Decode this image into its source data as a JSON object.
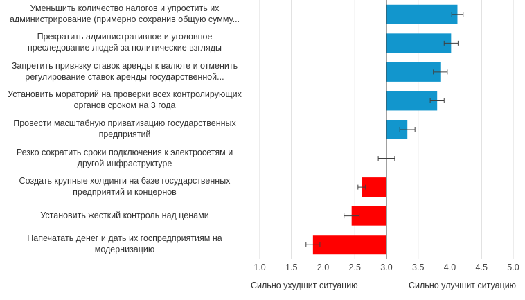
{
  "chart_data": {
    "type": "bar",
    "orientation": "horizontal",
    "categories": [
      [
        "Уменьшить количество налогов и упростить их",
        "администрирование (примерно сохранив общую сумму..."
      ],
      [
        "Прекратить административное и уголовное",
        "преследование людей за политические взгляды"
      ],
      [
        "Запретить привязку ставок аренды к валюте и отменить",
        "регулирование ставок аренды государственной..."
      ],
      [
        "Установить мораторий на проверки всех контролирующих",
        "органов сроком на 3 года"
      ],
      [
        "Провести масштабную приватизацию государственных",
        "предприятий"
      ],
      [
        "Резко сократить сроки подключения к электросетям и",
        "другой инфраструктуре"
      ],
      [
        "Создать крупные холдинги на базе государственных",
        "предприятий и концернов"
      ],
      [
        "Установить жесткий контроль над ценами"
      ],
      [
        "Напечатать денег и дать их госпредприятиям на",
        "модернизацию"
      ]
    ],
    "values": [
      4.12,
      4.02,
      3.85,
      3.8,
      3.33,
      3.0,
      2.61,
      2.45,
      1.84
    ],
    "error": [
      0.09,
      0.11,
      0.11,
      0.11,
      0.12,
      0.13,
      0.06,
      0.12,
      0.11
    ],
    "baseline": 3.0,
    "xlim": [
      1.0,
      5.0
    ],
    "x_ticks": [
      "1.0",
      "1.5",
      "2.0",
      "2.5",
      "3.0",
      "3.5",
      "4.0",
      "4.5",
      "5.0"
    ],
    "x_tick_values": [
      1.0,
      1.5,
      2.0,
      2.5,
      3.0,
      3.5,
      4.0,
      4.5,
      5.0
    ],
    "left_note": "Сильно ухудшит ситуацию",
    "right_note": "Сильно улучшит ситуацию",
    "grid": true,
    "colors": {
      "positive": "#1296CD",
      "negative": "#FF0000",
      "grid": "#D9D9D9",
      "baseline": "#404040",
      "error": "#404040"
    }
  }
}
